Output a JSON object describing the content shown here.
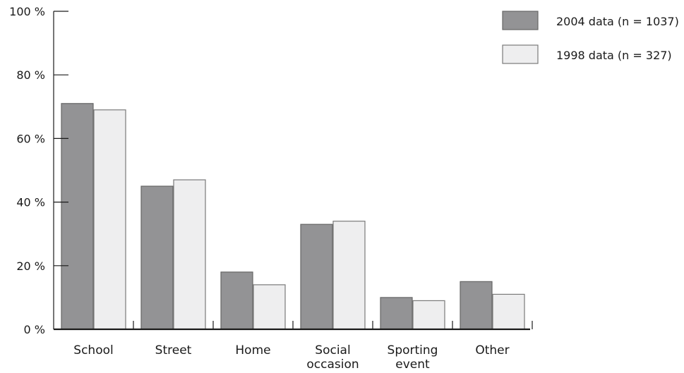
{
  "chart_data": {
    "type": "bar",
    "categories": [
      [
        "School"
      ],
      [
        "Street"
      ],
      [
        "Home"
      ],
      [
        "Social",
        "occasion"
      ],
      [
        "Sporting",
        "event"
      ],
      [
        "Other"
      ]
    ],
    "series": [
      {
        "name": "2004 data (n = 1037)",
        "values": [
          71,
          45,
          18,
          33,
          10,
          15
        ],
        "color": "#939395",
        "stroke": "#666666"
      },
      {
        "name": "1998 data (n = 327)",
        "values": [
          69,
          47,
          14,
          34,
          9,
          11
        ],
        "color": "#eeeeef",
        "stroke": "#7a7a7a"
      }
    ],
    "yticks": [
      "0 %",
      "20 %",
      "40 %",
      "60 %",
      "80 %",
      "100 %"
    ],
    "ylim": [
      0,
      100
    ],
    "title": "",
    "xlabel": "",
    "ylabel": "",
    "legend_position": "top-right",
    "grid": false
  }
}
